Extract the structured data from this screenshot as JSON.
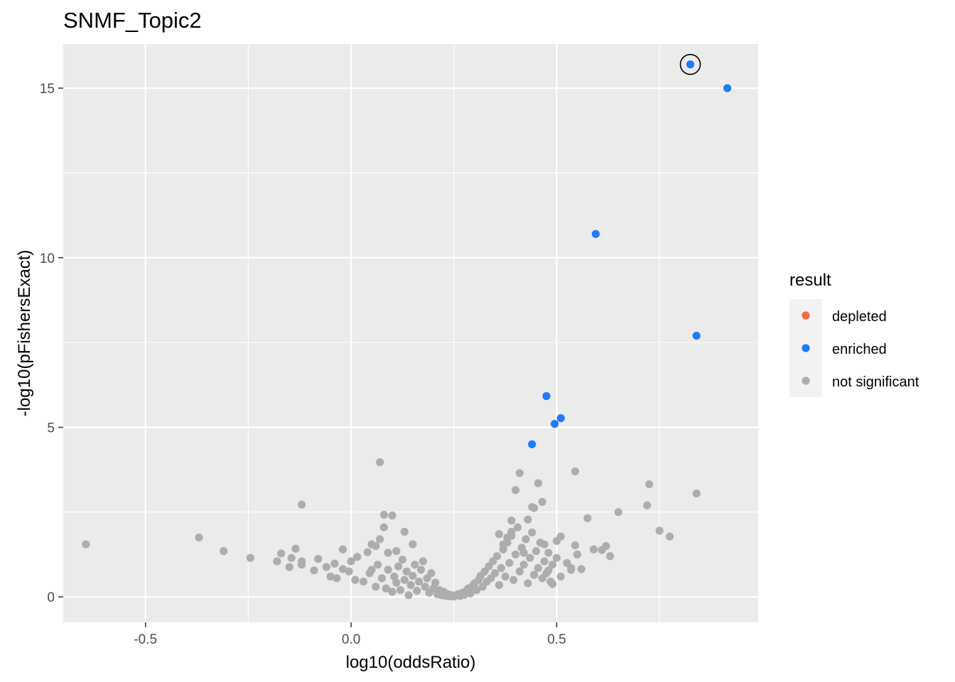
{
  "chart_data": {
    "type": "scatter",
    "title": "SNMF_Topic2",
    "xlabel": "log10(oddsRatio)",
    "ylabel": "-log10(pFishersExact)",
    "xlim": [
      -0.7,
      0.99
    ],
    "ylim": [
      -0.75,
      16.3
    ],
    "x_ticks": [
      -0.5,
      0.0,
      0.5
    ],
    "x_tick_labels": [
      "-0.5",
      "0.0",
      "0.5"
    ],
    "y_ticks": [
      0,
      5,
      10,
      15
    ],
    "y_tick_labels": [
      "0",
      "5",
      "10",
      "15"
    ],
    "grid": true,
    "legend": {
      "title": "result",
      "position": "right",
      "entries": [
        {
          "label": "depleted",
          "color": "#F8693F"
        },
        {
          "label": "enriched",
          "color": "#1F7BFA"
        },
        {
          "label": "not significant",
          "color": "#ADADAD"
        }
      ]
    },
    "colors": {
      "panel": "#EBEBEB",
      "grid": "#FFFFFF",
      "highlight_ring": "#000000"
    },
    "highlighted": {
      "x": 0.825,
      "y": 15.7
    },
    "series": [
      {
        "name": "enriched",
        "points": [
          [
            0.825,
            15.7
          ],
          [
            0.915,
            15.0
          ],
          [
            0.595,
            10.7
          ],
          [
            0.84,
            7.7
          ],
          [
            0.475,
            5.92
          ],
          [
            0.51,
            5.27
          ],
          [
            0.495,
            5.1
          ],
          [
            0.44,
            4.5
          ]
        ]
      },
      {
        "name": "not significant",
        "points": [
          [
            -0.645,
            1.55
          ],
          [
            -0.37,
            1.75
          ],
          [
            -0.31,
            1.35
          ],
          [
            -0.245,
            1.15
          ],
          [
            -0.18,
            1.05
          ],
          [
            -0.17,
            1.28
          ],
          [
            -0.15,
            0.88
          ],
          [
            -0.145,
            1.15
          ],
          [
            -0.135,
            1.42
          ],
          [
            -0.12,
            2.72
          ],
          [
            -0.12,
            0.95
          ],
          [
            -0.12,
            1.05
          ],
          [
            -0.09,
            0.78
          ],
          [
            -0.08,
            1.12
          ],
          [
            -0.06,
            0.88
          ],
          [
            -0.05,
            0.6
          ],
          [
            -0.04,
            0.98
          ],
          [
            -0.035,
            0.55
          ],
          [
            -0.02,
            1.4
          ],
          [
            -0.02,
            0.82
          ],
          [
            -0.005,
            0.75
          ],
          [
            0.01,
            0.5
          ],
          [
            0.015,
            1.18
          ],
          [
            0.0,
            1.05
          ],
          [
            0.04,
            1.32
          ],
          [
            0.05,
            0.8
          ],
          [
            0.065,
            0.95
          ],
          [
            0.07,
            1.7
          ],
          [
            0.07,
            3.97
          ],
          [
            0.08,
            2.05
          ],
          [
            0.08,
            2.42
          ],
          [
            0.1,
            2.4
          ],
          [
            0.13,
            1.92
          ],
          [
            0.15,
            1.55
          ],
          [
            0.11,
            1.35
          ],
          [
            0.09,
            1.3
          ],
          [
            0.05,
            1.55
          ],
          [
            0.06,
            1.5
          ],
          [
            0.03,
            0.45
          ],
          [
            0.045,
            0.7
          ],
          [
            0.06,
            0.3
          ],
          [
            0.075,
            0.55
          ],
          [
            0.085,
            0.25
          ],
          [
            0.09,
            0.8
          ],
          [
            0.1,
            0.15
          ],
          [
            0.105,
            0.6
          ],
          [
            0.11,
            0.42
          ],
          [
            0.115,
            0.9
          ],
          [
            0.12,
            0.2
          ],
          [
            0.125,
            1.1
          ],
          [
            0.13,
            0.5
          ],
          [
            0.135,
            0.75
          ],
          [
            0.14,
            0.05
          ],
          [
            0.145,
            0.35
          ],
          [
            0.15,
            0.62
          ],
          [
            0.155,
            0.95
          ],
          [
            0.16,
            0.18
          ],
          [
            0.165,
            0.45
          ],
          [
            0.17,
            0.8
          ],
          [
            0.175,
            1.05
          ],
          [
            0.18,
            0.3
          ],
          [
            0.185,
            0.55
          ],
          [
            0.19,
            0.12
          ],
          [
            0.195,
            0.7
          ],
          [
            0.2,
            0.25
          ],
          [
            0.205,
            0.42
          ],
          [
            0.21,
            0.08
          ],
          [
            0.215,
            0.2
          ],
          [
            0.22,
            0.05
          ],
          [
            0.225,
            0.15
          ],
          [
            0.23,
            0.03
          ],
          [
            0.235,
            0.08
          ],
          [
            0.24,
            0.02
          ],
          [
            0.245,
            0.05
          ],
          [
            0.25,
            0.01
          ],
          [
            0.255,
            0.04
          ],
          [
            0.26,
            0.08
          ],
          [
            0.265,
            0.03
          ],
          [
            0.27,
            0.12
          ],
          [
            0.275,
            0.06
          ],
          [
            0.28,
            0.18
          ],
          [
            0.285,
            0.25
          ],
          [
            0.29,
            0.1
          ],
          [
            0.295,
            0.32
          ],
          [
            0.3,
            0.4
          ],
          [
            0.305,
            0.2
          ],
          [
            0.31,
            0.5
          ],
          [
            0.315,
            0.62
          ],
          [
            0.32,
            0.3
          ],
          [
            0.325,
            0.75
          ],
          [
            0.33,
            0.45
          ],
          [
            0.335,
            0.9
          ],
          [
            0.34,
            0.55
          ],
          [
            0.345,
            1.05
          ],
          [
            0.35,
            0.7
          ],
          [
            0.355,
            1.2
          ],
          [
            0.36,
            0.35
          ],
          [
            0.365,
            0.85
          ],
          [
            0.37,
            1.4
          ],
          [
            0.375,
            0.6
          ],
          [
            0.38,
            1.6
          ],
          [
            0.385,
            1.0
          ],
          [
            0.39,
            1.8
          ],
          [
            0.395,
            0.5
          ],
          [
            0.4,
            1.25
          ],
          [
            0.405,
            2.05
          ],
          [
            0.41,
            0.75
          ],
          [
            0.415,
            1.45
          ],
          [
            0.42,
            0.95
          ],
          [
            0.425,
            1.7
          ],
          [
            0.43,
            0.4
          ],
          [
            0.435,
            1.15
          ],
          [
            0.44,
            1.9
          ],
          [
            0.445,
            0.65
          ],
          [
            0.45,
            1.35
          ],
          [
            0.455,
            0.85
          ],
          [
            0.46,
            1.6
          ],
          [
            0.465,
            0.55
          ],
          [
            0.47,
            1.05
          ],
          [
            0.475,
            0.7
          ],
          [
            0.48,
            1.3
          ],
          [
            0.485,
            0.45
          ],
          [
            0.49,
            0.95
          ],
          [
            0.5,
            1.15
          ],
          [
            0.51,
            0.6
          ],
          [
            0.36,
            1.85
          ],
          [
            0.37,
            1.55
          ],
          [
            0.39,
            2.25
          ],
          [
            0.4,
            3.15
          ],
          [
            0.41,
            3.65
          ],
          [
            0.44,
            2.65
          ],
          [
            0.445,
            2.62
          ],
          [
            0.455,
            3.35
          ],
          [
            0.465,
            2.8
          ],
          [
            0.43,
            2.28
          ],
          [
            0.42,
            1.3
          ],
          [
            0.39,
            1.92
          ],
          [
            0.38,
            1.75
          ],
          [
            0.47,
            1.55
          ],
          [
            0.5,
            1.65
          ],
          [
            0.51,
            1.78
          ],
          [
            0.545,
            1.52
          ],
          [
            0.545,
            3.7
          ],
          [
            0.55,
            1.25
          ],
          [
            0.525,
            1.0
          ],
          [
            0.535,
            0.85
          ],
          [
            0.56,
            0.82
          ],
          [
            0.575,
            2.32
          ],
          [
            0.59,
            1.4
          ],
          [
            0.61,
            1.38
          ],
          [
            0.62,
            1.5
          ],
          [
            0.63,
            1.2
          ],
          [
            0.65,
            2.5
          ],
          [
            0.72,
            2.7
          ],
          [
            0.725,
            3.32
          ],
          [
            0.75,
            1.95
          ],
          [
            0.775,
            1.78
          ],
          [
            0.84,
            3.05
          ],
          [
            0.535,
            0.8
          ],
          [
            0.49,
            0.38
          ],
          [
            0.48,
            0.78
          ]
        ]
      }
    ]
  }
}
